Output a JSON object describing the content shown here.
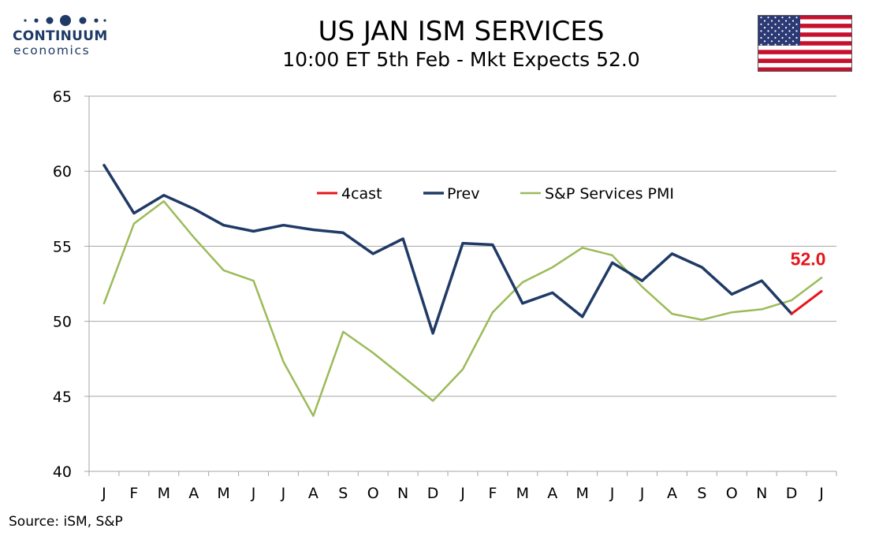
{
  "header": {
    "title": "US JAN ISM SERVICES",
    "subtitle": "10:00 ET 5th Feb - Mkt Expects 52.0"
  },
  "logo": {
    "brand": "CONTINUUM",
    "brand_sub": "economics"
  },
  "footer": {
    "source": "Source: iSM, S&P"
  },
  "colors": {
    "forecast": "#e8141b",
    "prev": "#1f3a66",
    "pmi": "#9bbb59",
    "grid": "#a6a6a6",
    "logo_blue": "#1f3a66",
    "flag_red": "#c8102e",
    "flag_blue": "#2b3a74"
  },
  "chart_data": {
    "type": "line",
    "title": "US JAN ISM SERVICES",
    "subtitle": "10:00 ET 5th Feb - Mkt Expects 52.0",
    "categories": [
      "J",
      "F",
      "M",
      "A",
      "M",
      "J",
      "J",
      "A",
      "S",
      "O",
      "N",
      "D",
      "J",
      "F",
      "M",
      "A",
      "M",
      "J",
      "J",
      "A",
      "S",
      "O",
      "N",
      "D",
      "J"
    ],
    "ylim": [
      40,
      65
    ],
    "yticks": [
      40,
      45,
      50,
      55,
      60,
      65
    ],
    "grid": true,
    "legend_position": "top-center",
    "series": [
      {
        "name": "4cast",
        "color": "#e8141b",
        "values": [
          null,
          null,
          null,
          null,
          null,
          null,
          null,
          null,
          null,
          null,
          null,
          null,
          null,
          null,
          null,
          null,
          null,
          null,
          null,
          null,
          null,
          null,
          null,
          50.5,
          52.0
        ]
      },
      {
        "name": "Prev",
        "color": "#1f3a66",
        "values": [
          60.4,
          57.2,
          58.4,
          57.5,
          56.4,
          56.0,
          56.4,
          56.1,
          55.9,
          54.5,
          55.5,
          49.2,
          55.2,
          55.1,
          51.2,
          51.9,
          50.3,
          53.9,
          52.7,
          54.5,
          53.6,
          51.8,
          52.7,
          50.5,
          null
        ]
      },
      {
        "name": "S&P Services PMI",
        "color": "#9bbb59",
        "values": [
          51.2,
          56.5,
          58.0,
          55.6,
          53.4,
          52.7,
          47.3,
          43.7,
          49.3,
          47.9,
          46.3,
          44.7,
          46.8,
          50.6,
          52.6,
          53.6,
          54.9,
          54.4,
          52.3,
          50.5,
          50.1,
          50.6,
          50.8,
          51.4,
          52.9
        ]
      }
    ],
    "annotations": [
      {
        "text": "52.0",
        "series": "4cast",
        "index": 24
      }
    ]
  }
}
